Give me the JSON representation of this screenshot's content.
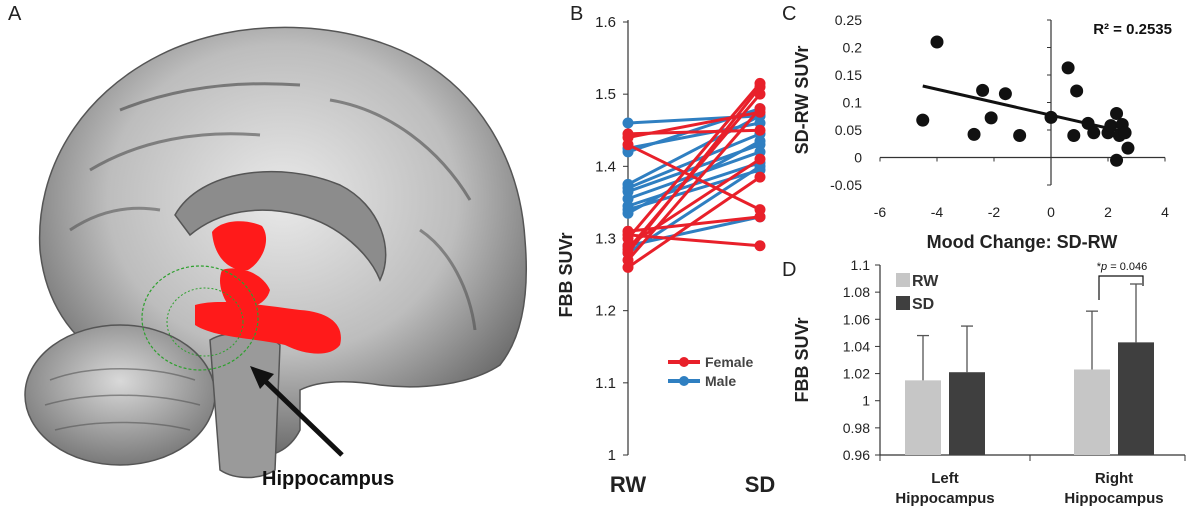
{
  "panels": {
    "a": "A",
    "b": "B",
    "c": "C",
    "d": "D"
  },
  "brain": {
    "annotation": "Hippocampus",
    "colors": {
      "cluster": "#ff1a1a",
      "roi": "#2ea02e"
    }
  },
  "chart_data": [
    {
      "panel": "B",
      "type": "line",
      "ylabel": "FBB SUVr",
      "categories": [
        "RW",
        "SD"
      ],
      "ylim": [
        1,
        1.6
      ],
      "yticks": [
        "1",
        "1.1",
        "1.2",
        "1.3",
        "1.4",
        "1.5",
        "1.6"
      ],
      "legend": {
        "position": "bottom-right",
        "entries": [
          "Female",
          "Male"
        ]
      },
      "colors": {
        "Female": "#e8202a",
        "Male": "#2f7fc1"
      },
      "series": [
        {
          "group": "Female",
          "values": [
            1.26,
            1.385
          ]
        },
        {
          "group": "Female",
          "values": [
            1.27,
            1.48
          ]
        },
        {
          "group": "Female",
          "values": [
            1.28,
            1.51
          ]
        },
        {
          "group": "Female",
          "values": [
            1.285,
            1.5
          ]
        },
        {
          "group": "Female",
          "values": [
            1.29,
            1.41
          ]
        },
        {
          "group": "Female",
          "values": [
            1.3,
            1.515
          ]
        },
        {
          "group": "Female",
          "values": [
            1.305,
            1.29
          ]
        },
        {
          "group": "Female",
          "values": [
            1.31,
            1.33
          ]
        },
        {
          "group": "Female",
          "values": [
            1.43,
            1.34
          ]
        },
        {
          "group": "Female",
          "values": [
            1.44,
            1.475
          ]
        },
        {
          "group": "Female",
          "values": [
            1.445,
            1.45
          ]
        },
        {
          "group": "Male",
          "values": [
            1.46,
            1.47
          ]
        },
        {
          "group": "Male",
          "values": [
            1.425,
            1.46
          ]
        },
        {
          "group": "Male",
          "values": [
            1.42,
            1.48
          ]
        },
        {
          "group": "Male",
          "values": [
            1.375,
            1.47
          ]
        },
        {
          "group": "Male",
          "values": [
            1.37,
            1.445
          ]
        },
        {
          "group": "Male",
          "values": [
            1.365,
            1.43
          ]
        },
        {
          "group": "Male",
          "values": [
            1.355,
            1.42
          ]
        },
        {
          "group": "Male",
          "values": [
            1.345,
            1.405
          ]
        },
        {
          "group": "Male",
          "values": [
            1.34,
            1.395
          ]
        },
        {
          "group": "Male",
          "values": [
            1.335,
            1.435
          ]
        },
        {
          "group": "Male",
          "values": [
            1.29,
            1.33
          ]
        },
        {
          "group": "Male",
          "values": [
            1.28,
            1.4
          ]
        }
      ]
    },
    {
      "panel": "C",
      "type": "scatter",
      "xlabel": "Mood Change: SD-RW",
      "ylabel": "SD-RW SUVr",
      "xlim": [
        -6,
        4
      ],
      "ylim": [
        -0.05,
        0.25
      ],
      "xticks": [
        "-6",
        "-4",
        "-2",
        "0",
        "2",
        "4"
      ],
      "yticks": [
        "-0.05",
        "0",
        "0.05",
        "0.1",
        "0.15",
        "0.2",
        "0.25"
      ],
      "annotation": "R² = 0.2535",
      "trendline": {
        "x": [
          -4.5,
          2.7
        ],
        "y": [
          0.13,
          0.045
        ]
      },
      "points": [
        {
          "x": -4.5,
          "y": 0.068
        },
        {
          "x": -4.0,
          "y": 0.21
        },
        {
          "x": -2.7,
          "y": 0.042
        },
        {
          "x": -2.4,
          "y": 0.122
        },
        {
          "x": -2.1,
          "y": 0.072
        },
        {
          "x": -1.6,
          "y": 0.116
        },
        {
          "x": -1.1,
          "y": 0.04
        },
        {
          "x": 0.0,
          "y": 0.073
        },
        {
          "x": 0.6,
          "y": 0.163
        },
        {
          "x": 0.8,
          "y": 0.04
        },
        {
          "x": 0.9,
          "y": 0.121
        },
        {
          "x": 1.3,
          "y": 0.062
        },
        {
          "x": 1.5,
          "y": 0.045
        },
        {
          "x": 2.0,
          "y": 0.045
        },
        {
          "x": 2.1,
          "y": 0.058
        },
        {
          "x": 2.3,
          "y": 0.08
        },
        {
          "x": 2.4,
          "y": 0.04
        },
        {
          "x": 2.5,
          "y": 0.06
        },
        {
          "x": 2.6,
          "y": 0.045
        },
        {
          "x": 2.7,
          "y": 0.017
        },
        {
          "x": 2.3,
          "y": -0.005
        }
      ]
    },
    {
      "panel": "D",
      "type": "bar",
      "ylabel": "FBB SUVr",
      "categories": [
        {
          "line1": "Left",
          "line2": "Hippocampus"
        },
        {
          "line1": "Right",
          "line2": "Hippocampus"
        }
      ],
      "ylim": [
        0.96,
        1.1
      ],
      "yticks": [
        "0.96",
        "0.98",
        "1",
        "1.02",
        "1.04",
        "1.06",
        "1.08",
        "1.1"
      ],
      "legend": {
        "position": "top-left",
        "entries": [
          "RW",
          "SD"
        ]
      },
      "colors": {
        "RW": "#c6c6c6",
        "SD": "#3f3f3f"
      },
      "series": [
        {
          "name": "RW",
          "values": [
            1.015,
            1.023
          ],
          "errors": [
            0.033,
            0.043
          ]
        },
        {
          "name": "SD",
          "values": [
            1.021,
            1.043
          ],
          "errors": [
            0.034,
            0.043
          ]
        }
      ],
      "significance": {
        "prefix": "*",
        "p": "p",
        "rest": " = 0.046"
      }
    }
  ]
}
